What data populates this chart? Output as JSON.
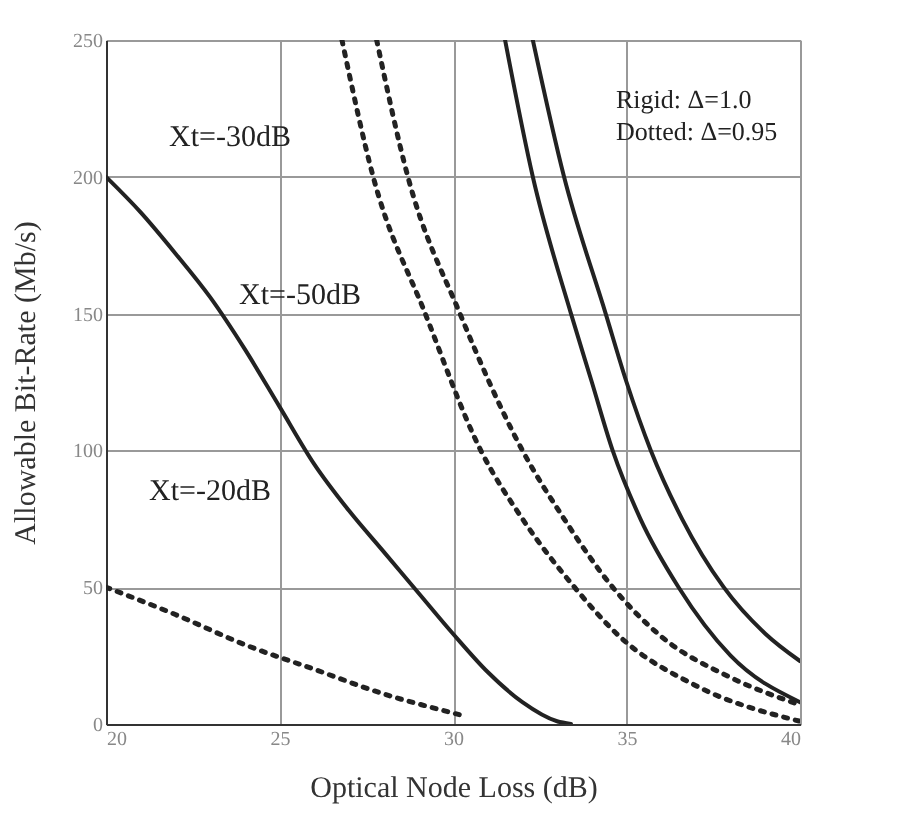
{
  "chart_data": {
    "type": "line",
    "xlabel": "Optical Node Loss (dB)",
    "ylabel": "Allowable Bit-Rate (Mb/s)",
    "xlim": [
      20,
      40
    ],
    "xticks": [
      20,
      25,
      30,
      35,
      40
    ],
    "ylim": [
      0,
      250
    ],
    "yticks": [
      0,
      50,
      100,
      150,
      200,
      250
    ],
    "grid": true,
    "marker": "none",
    "series": [
      {
        "color": "#222222",
        "line_style": "solid",
        "x": [
          20,
          21,
          22,
          23,
          24,
          25,
          26,
          27,
          28,
          29,
          30,
          31,
          32,
          33,
          33.4
        ],
        "values": [
          200,
          187,
          172,
          156,
          137,
          116,
          95,
          78,
          63,
          48,
          33,
          19,
          8,
          1,
          0
        ]
      },
      {
        "color": "#222222",
        "line_style": "dotted",
        "x": [
          20,
          22,
          24,
          26,
          28,
          30,
          30.3
        ],
        "values": [
          50,
          40,
          29,
          20,
          11,
          4,
          3
        ]
      },
      {
        "color": "#222222",
        "line_style": "solid",
        "x": [
          31.5,
          32.3,
          33.4,
          34,
          34.6,
          35.4,
          36.5,
          38,
          40
        ],
        "values": [
          250,
          200,
          150,
          125,
          100,
          75,
          50,
          25,
          8
        ]
      },
      {
        "color": "#222222",
        "line_style": "solid",
        "x": [
          32.3,
          33.2,
          34.4,
          35,
          35.7,
          36.6,
          37.8,
          39,
          40
        ],
        "values": [
          250,
          200,
          150,
          125,
          100,
          75,
          50,
          33,
          23
        ]
      },
      {
        "color": "#222222",
        "line_style": "dotted",
        "x": [
          26.8,
          27.7,
          29.2,
          30.8,
          32,
          33.5,
          34.8,
          37,
          40
        ],
        "values": [
          250,
          200,
          150,
          100,
          75,
          50,
          32,
          14,
          1
        ]
      },
      {
        "color": "#222222",
        "line_style": "dotted",
        "x": [
          27.8,
          28.7,
          30.2,
          32,
          33.2,
          34.6,
          36,
          38,
          40
        ],
        "values": [
          250,
          200,
          150,
          100,
          75,
          50,
          32,
          17,
          7
        ]
      }
    ],
    "annotations": [
      "Xt=-30dB",
      "Xt=-50dB",
      "Xt=-20dB",
      "Rigid: Δ=1.0",
      "Dotted: Δ=0.95"
    ]
  }
}
